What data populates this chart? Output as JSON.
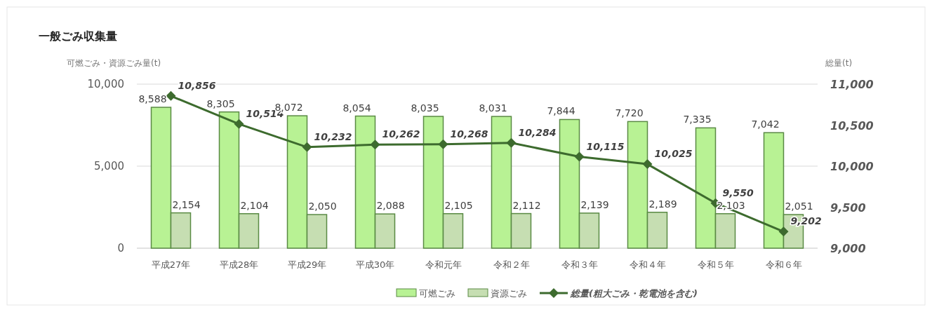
{
  "chart_data": {
    "type": "bar",
    "title": "一般ごみ収集量",
    "ylabel": "可燃ごみ・資源ごみ量(t)",
    "y2label": "総量(t)",
    "categories": [
      "平成27年",
      "平成28年",
      "平成29年",
      "平成30年",
      "令和元年",
      "令和２年",
      "令和３年",
      "令和４年",
      "令和５年",
      "令和６年"
    ],
    "series": [
      {
        "name": "可燃ごみ",
        "color": "#b8f294",
        "values": [
          8588,
          8305,
          8072,
          8054,
          8035,
          8031,
          7844,
          7720,
          7335,
          7042
        ],
        "value_labels": [
          "8,588",
          "8,305",
          "8,072",
          "8,054",
          "8,035",
          "8,031",
          "7,844",
          "7,720",
          "7,335",
          "7,042"
        ]
      },
      {
        "name": "資源ごみ",
        "color": "#c6deb2",
        "values": [
          2154,
          2104,
          2050,
          2088,
          2105,
          2112,
          2139,
          2189,
          2103,
          2051
        ],
        "value_labels": [
          "2,154",
          "2,104",
          "2,050",
          "2,088",
          "2,105",
          "2,112",
          "2,139",
          "2,189",
          "2,103",
          "2,051"
        ]
      },
      {
        "name": "総量(粗大ごみ・乾電池を含む)",
        "type": "line",
        "axis": "y2",
        "color": "#3d6b2e",
        "marker": "diamond",
        "values": [
          10856,
          10514,
          10232,
          10262,
          10268,
          10284,
          10115,
          10025,
          9550,
          9202
        ],
        "value_labels": [
          "10,856",
          "10,514",
          "10,232",
          "10,262",
          "10,268",
          "10,284",
          "10,115",
          "10,025",
          "9,550",
          "9,202"
        ]
      }
    ],
    "ylim": [
      0,
      10000
    ],
    "yticks": [
      0,
      {
        "value": 5000,
        "label": "5,000"
      },
      {
        "value": 10000,
        "label": "10,000"
      }
    ],
    "y2lim": [
      9000,
      11000
    ],
    "y2ticks": [
      {
        "value": 9000,
        "label": "9,000"
      },
      {
        "value": 9500,
        "label": "9,500"
      },
      {
        "value": 10000,
        "label": "10,000"
      },
      {
        "value": 10500,
        "label": "10,500"
      },
      {
        "value": 11000,
        "label": "11,000"
      }
    ],
    "grid": "y",
    "legend": "bottom"
  }
}
